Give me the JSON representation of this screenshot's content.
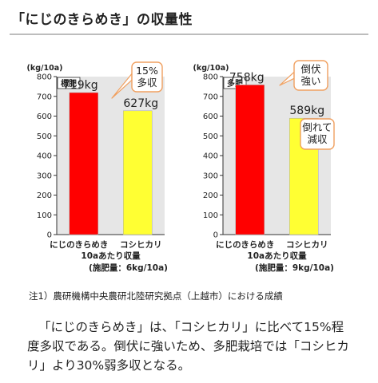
{
  "page": {
    "title": "「にじのきらめき」の収量性",
    "note": "注1）農研機構中央農研北陸研究拠点（上越市）における成績",
    "summary": "「にじのきらめき」は、「コシヒカリ」に比べて15%程度多収である。倒伏に強いため、多肥栽培では「コシヒカリ」より30%弱多収となる。"
  },
  "colors": {
    "red": "#ff0000",
    "yellow": "#ffff33",
    "panel_bg": "#e6e6e6",
    "callout_border": "#f0a060"
  },
  "chart_data": [
    {
      "type": "bar",
      "title": "標肥",
      "ylabel": "(kg/10a)",
      "ylim": [
        0,
        800
      ],
      "yticks": [
        "0",
        "100",
        "200",
        "300",
        "400",
        "500",
        "600",
        "700",
        "800"
      ],
      "categories": [
        "にじのきらめき",
        "コシヒカリ"
      ],
      "values": [
        719,
        627
      ],
      "data_labels": [
        "719kg",
        "627kg"
      ],
      "xlabel": "10aあたり収量",
      "sublabel": "(施肥量：6kg/10a)",
      "callouts": [
        {
          "bar": 0,
          "lines": [
            "15%",
            "多収"
          ]
        }
      ]
    },
    {
      "type": "bar",
      "title": "多肥",
      "ylabel": "(kg/10a)",
      "ylim": [
        0,
        800
      ],
      "yticks": [
        "0",
        "100",
        "200",
        "300",
        "400",
        "500",
        "600",
        "700",
        "800"
      ],
      "categories": [
        "にじのきらめき",
        "コシヒカリ"
      ],
      "values": [
        758,
        589
      ],
      "data_labels": [
        "758kg",
        "589kg"
      ],
      "xlabel": "10aあたり収量",
      "sublabel": "(施肥量：9kg/10a)",
      "callouts": [
        {
          "bar": 0,
          "lines": [
            "倒伏",
            "強い"
          ]
        },
        {
          "bar": 1,
          "lines": [
            "倒れて",
            "減収"
          ]
        }
      ]
    }
  ]
}
